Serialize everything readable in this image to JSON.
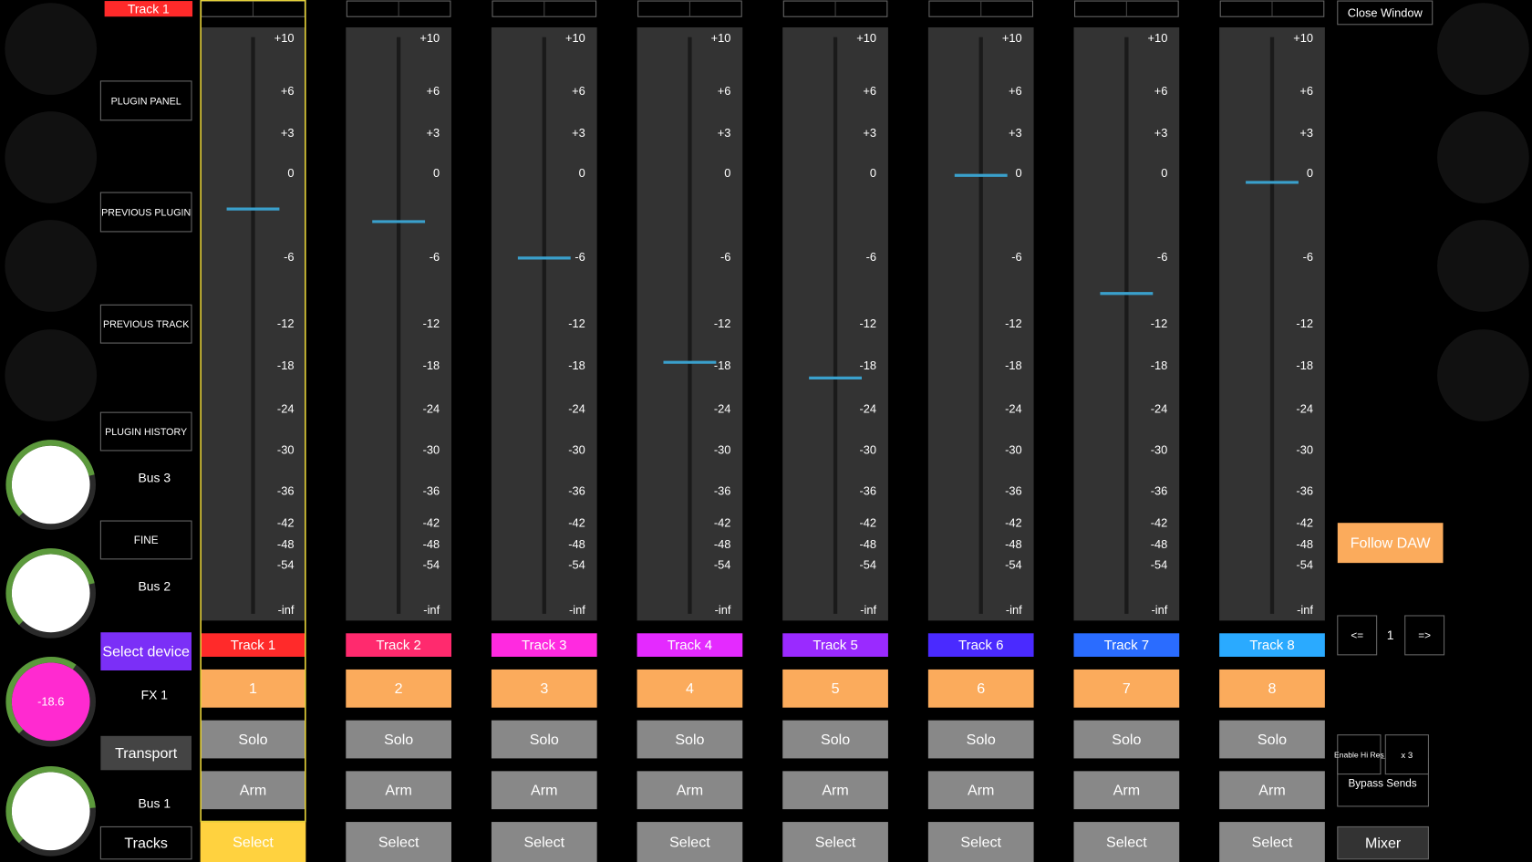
{
  "selected_track_label": "Track 1",
  "left_buttons": [
    "PLUGIN PANEL",
    "PREVIOUS PLUGIN",
    "PREVIOUS TRACK",
    "PLUGIN HISTORY",
    "FINE",
    "Select device",
    "Transport",
    "Tracks"
  ],
  "knobs": [
    {
      "label": "Bus 3",
      "value": -8.2
    },
    {
      "label": "Bus 2",
      "value": -8.2
    },
    {
      "label": "FX 1",
      "value": -18.6
    },
    {
      "label": "Bus 1",
      "value": -6.1
    }
  ],
  "scale": {
    "ticks": [
      {
        "value": 10,
        "label": "+10"
      },
      {
        "value": 6,
        "label": "+6"
      },
      {
        "value": 3,
        "label": "+3"
      },
      0,
      -6,
      -12,
      -18,
      -24,
      -30,
      -36,
      -42,
      -48,
      -54
    ],
    "floor_label": "-inf"
  },
  "tracks": [
    {
      "name": "Track 1",
      "color": "#ff2a2a",
      "number": 1,
      "fader_db": -2.5,
      "solo": "Solo",
      "arm": "Arm",
      "select": "Select",
      "selected": true
    },
    {
      "name": "Track 2",
      "color": "#ff2a6e",
      "number": 2,
      "fader_db": -3.4,
      "solo": "Solo",
      "arm": "Arm",
      "select": "Select",
      "selected": false
    },
    {
      "name": "Track 3",
      "color": "#ff2ae0",
      "number": 3,
      "fader_db": -6,
      "solo": "Solo",
      "arm": "Arm",
      "select": "Select",
      "selected": false
    },
    {
      "name": "Track 4",
      "color": "#e42aff",
      "number": 4,
      "fader_db": -17.4,
      "solo": "Solo",
      "arm": "Arm",
      "select": "Select",
      "selected": false
    },
    {
      "name": "Track 5",
      "color": "#9a2aff",
      "number": 5,
      "fader_db": -19.6,
      "solo": "Solo",
      "arm": "Arm",
      "select": "Select",
      "selected": false
    },
    {
      "name": "Track 6",
      "color": "#4a2aff",
      "number": 6,
      "fader_db": -0.1,
      "solo": "Solo",
      "arm": "Arm",
      "select": "Select",
      "selected": false
    },
    {
      "name": "Track 7",
      "color": "#2a6cff",
      "number": 7,
      "fader_db": -9.2,
      "solo": "Solo",
      "arm": "Arm",
      "select": "Select",
      "selected": false
    },
    {
      "name": "Track 8",
      "color": "#2aaaff",
      "number": 8,
      "fader_db": -0.6,
      "solo": "Solo",
      "arm": "Arm",
      "select": "Select",
      "selected": false
    }
  ],
  "right": {
    "close": "Close Window",
    "follow": "Follow DAW",
    "prev": "<=",
    "page": 1,
    "next": "=>",
    "hires": "Enable Hi Res",
    "multiplier": "x 3",
    "bypass": "Bypass Sends",
    "mixer": "Mixer"
  }
}
